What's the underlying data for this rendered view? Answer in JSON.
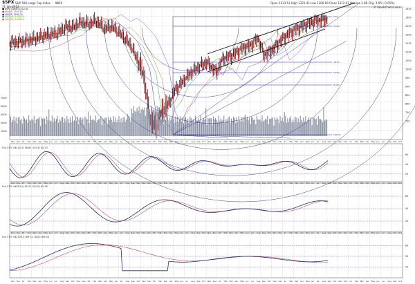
{
  "header": {
    "symbol": "$SPX",
    "name": "S&P 500 Large Cap Index",
    "exchange": "INDX",
    "date": "31-Jan-2012",
    "quote_line": "Open 1313.53  High 1321.41  Low 1306.69  Close 1312.41  Volume 3.9B  Chg -1.95 (-0.05%)",
    "site": "© StockCharts.com"
  },
  "legend": [
    {
      "text": "$SPX (Daily) 1312.41",
      "color": "#000000"
    },
    {
      "text": "MA(20) 1300.90",
      "color": "#d03030"
    },
    {
      "text": "MA(50) 1265.70",
      "color": "#2020c0"
    },
    {
      "text": "MA(100) 1223.20",
      "color": "#20a020"
    },
    {
      "text": "MA(200) 1258.42",
      "color": "#c07020"
    }
  ],
  "main_axis_right": [
    "1350",
    "1300",
    "1250",
    "1200",
    "1150",
    "1100",
    "1050",
    "1000",
    "950",
    "900",
    "850",
    "800",
    "750",
    "700"
  ],
  "volume_axis_left": [
    "7500",
    "6000",
    "4500",
    "3000",
    "1500"
  ],
  "fib_labels": [
    "0.0%",
    "23.6%",
    "38.2%",
    "50.0%",
    "61.8%",
    "100.0%"
  ],
  "x_axis_labels": [
    "Nov",
    "Dec",
    "07",
    "Feb",
    "Mar",
    "Apr",
    "May",
    "Jun",
    "Jul",
    "Aug",
    "Sep",
    "Oct",
    "Nov",
    "Dec",
    "08",
    "Feb",
    "Mar",
    "Apr",
    "May",
    "Jun",
    "Jul",
    "Aug",
    "Sep",
    "Oct",
    "Nov",
    "Dec",
    "09",
    "Feb",
    "Mar",
    "Apr",
    "May",
    "Jun",
    "Jul",
    "Aug",
    "Sep",
    "Oct",
    "Nov",
    "Dec",
    "10",
    "Feb",
    "Mar",
    "Apr",
    "May",
    "Jun",
    "Jul",
    "Aug",
    "Sep",
    "Oct",
    "Nov",
    "Dec",
    "11",
    "Feb",
    "Mar",
    "Apr",
    "May",
    "Jun",
    "Jul",
    "Aug",
    "Sep",
    "Oct",
    "Nov",
    "Dec",
    "12",
    "Feb",
    "Mar",
    "Apr",
    "May",
    "Jun",
    "Jul",
    "Aug",
    "Sep",
    "Oct"
  ],
  "panels": [
    {
      "label": "Full STO %K(14,3) 56.81  %D(3) 64.13",
      "axis": [
        "80",
        "50",
        "20"
      ]
    },
    {
      "label": "Full STO %K(50,3) 82.01  %D(3) 82.28",
      "axis": [
        "80",
        "50",
        "20"
      ]
    },
    {
      "label": "Full STO %K(100,3) 89.51  %D(3) 89.04",
      "axis": [
        "80",
        "50",
        "20"
      ]
    }
  ],
  "colors": {
    "price_up": "#1a1a1a",
    "price_down": "#d01010",
    "volume": "#8890a0",
    "fib": "#2a2aa0",
    "k_line": "#1a2a7a",
    "d_line": "#d04040",
    "grid": "#c8c8d8"
  }
}
